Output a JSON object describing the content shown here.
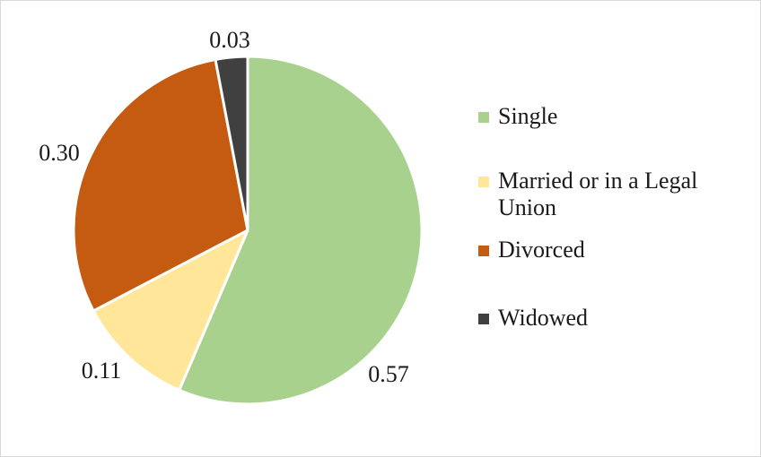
{
  "chart_data": {
    "type": "pie",
    "title": "",
    "start_angle_deg": 0,
    "direction": "clockwise",
    "slices": [
      {
        "name": "Single",
        "value": 0.57,
        "label": "0.57",
        "color": "#a9d18e"
      },
      {
        "name": "Married or in a Legal Union",
        "value": 0.11,
        "label": "0.11",
        "color": "#ffe699"
      },
      {
        "name": "Divorced",
        "value": 0.3,
        "label": "0.30",
        "color": "#c55a11"
      },
      {
        "name": "Widowed",
        "value": 0.03,
        "label": "0.03",
        "color": "#404040"
      }
    ],
    "legend": {
      "position": "right",
      "items": [
        "Single",
        "Married or in a Legal Union",
        "Divorced",
        "Widowed"
      ]
    }
  }
}
